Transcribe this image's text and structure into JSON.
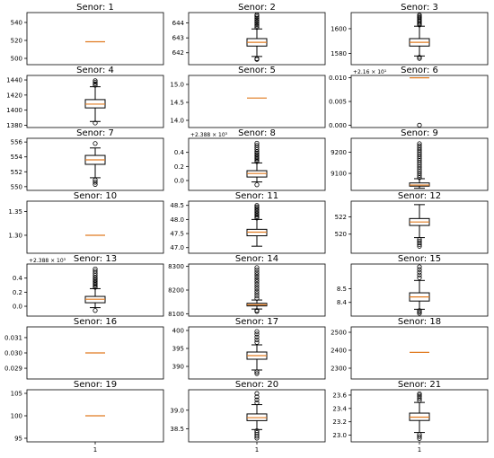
{
  "chart_data": [
    {
      "type": "box",
      "title": "Senor: 1",
      "ylim": [
        493,
        551
      ],
      "yticks": [
        500,
        520,
        540
      ],
      "ytick_labels": [
        "500",
        "520",
        "540"
      ],
      "median": 518.5,
      "q1": 518.5,
      "q3": 518.5,
      "whisker_low": 518.5,
      "whisker_high": 518.5,
      "fliers_low": [],
      "fliers_high": [],
      "xtick_labels": []
    },
    {
      "type": "box",
      "title": "Senor: 2",
      "ylim": [
        641.2,
        644.7
      ],
      "yticks": [
        642,
        643,
        644
      ],
      "ytick_labels": [
        "642",
        "643",
        "644"
      ],
      "median": 642.7,
      "q1": 642.45,
      "q3": 642.95,
      "whisker_low": 641.75,
      "whisker_high": 643.6,
      "fliers_low": [
        641.6,
        641.55
      ],
      "fliers_high": [
        643.7,
        643.8,
        643.9,
        644.0,
        644.1,
        644.2,
        644.3,
        644.4,
        644.5,
        644.55
      ],
      "xtick_labels": []
    },
    {
      "type": "box",
      "title": "Senor: 3",
      "ylim": [
        1571,
        1613
      ],
      "yticks": [
        1580,
        1600
      ],
      "ytick_labels": [
        "1580",
        "1600"
      ],
      "median": 1589,
      "q1": 1586,
      "q3": 1592,
      "whisker_low": 1578,
      "whisker_high": 1602,
      "fliers_low": [
        1577,
        1576
      ],
      "fliers_high": [
        1603,
        1604,
        1605,
        1606,
        1607,
        1608,
        1609,
        1610,
        1611
      ],
      "xtick_labels": []
    },
    {
      "type": "box",
      "title": "Senor: 4",
      "ylim": [
        1377,
        1446
      ],
      "yticks": [
        1380,
        1400,
        1420,
        1440
      ],
      "ytick_labels": [
        "1380",
        "1400",
        "1420",
        "1440"
      ],
      "median": 1408,
      "q1": 1403,
      "q3": 1414,
      "whisker_low": 1385,
      "whisker_high": 1431,
      "fliers_low": [
        1383
      ],
      "fliers_high": [
        1433,
        1435,
        1437,
        1439
      ],
      "xtick_labels": []
    },
    {
      "type": "box",
      "title": "Senor: 5",
      "ylim": [
        13.8,
        15.25
      ],
      "yticks": [
        14.0,
        14.5,
        15.0
      ],
      "ytick_labels": [
        "14.0",
        "14.5",
        "15.0"
      ],
      "median": 14.62,
      "q1": 14.62,
      "q3": 14.62,
      "whisker_low": 14.62,
      "whisker_high": 14.62,
      "fliers_low": [],
      "fliers_high": [],
      "xtick_labels": []
    },
    {
      "type": "box",
      "title": "Senor: 6",
      "offset_label": "+2.16 × 10¹",
      "ylim": [
        -0.0005,
        0.0105
      ],
      "yticks": [
        0.0,
        0.005,
        0.01
      ],
      "ytick_labels": [
        "0.000",
        "0.005",
        "0.010"
      ],
      "median": 0.01,
      "q1": 0.01,
      "q3": 0.01,
      "whisker_low": 0.01,
      "whisker_high": 0.01,
      "fliers_low": [
        0.0
      ],
      "fliers_high": [],
      "xtick_labels": []
    },
    {
      "type": "box",
      "title": "Senor: 7",
      "ylim": [
        549.5,
        556.5
      ],
      "yticks": [
        550,
        552,
        554,
        556
      ],
      "ytick_labels": [
        "550",
        "552",
        "554",
        "556"
      ],
      "median": 553.6,
      "q1": 553.0,
      "q3": 554.2,
      "whisker_low": 551.2,
      "whisker_high": 555.2,
      "fliers_low": [
        550.9,
        550.6,
        550.3
      ],
      "fliers_high": [
        555.8
      ],
      "xtick_labels": []
    },
    {
      "type": "box",
      "title": "Senor: 8",
      "offset_label": "+2.388 × 10³",
      "ylim": [
        -0.14,
        0.6
      ],
      "yticks": [
        0.0,
        0.2,
        0.4
      ],
      "ytick_labels": [
        "0.0",
        "0.2",
        "0.4"
      ],
      "median": 0.1,
      "q1": 0.05,
      "q3": 0.14,
      "whisker_low": -0.02,
      "whisker_high": 0.25,
      "fliers_low": [
        -0.06
      ],
      "fliers_high": [
        0.27,
        0.29,
        0.31,
        0.33,
        0.35,
        0.37,
        0.39,
        0.41,
        0.44,
        0.47,
        0.5,
        0.53
      ],
      "xtick_labels": []
    },
    {
      "type": "box",
      "title": "Senor: 9",
      "ylim": [
        9020,
        9265
      ],
      "yticks": [
        9100,
        9200
      ],
      "ytick_labels": [
        "9100",
        "9200"
      ],
      "median": 9045,
      "q1": 9040,
      "q3": 9055,
      "whisker_low": 9030,
      "whisker_high": 9075,
      "fliers_low": [],
      "fliers_high": [
        9080,
        9090,
        9100,
        9110,
        9120,
        9130,
        9140,
        9150,
        9160,
        9170,
        9180,
        9190,
        9200,
        9210,
        9220,
        9230,
        9240
      ],
      "xtick_labels": []
    },
    {
      "type": "box",
      "title": "Senor: 10",
      "ylim": [
        1.262,
        1.372
      ],
      "yticks": [
        1.3,
        1.35
      ],
      "ytick_labels": [
        "1.30",
        "1.35"
      ],
      "median": 1.3,
      "q1": 1.3,
      "q3": 1.3,
      "whisker_low": 1.3,
      "whisker_high": 1.3,
      "fliers_low": [],
      "fliers_high": [],
      "xtick_labels": []
    },
    {
      "type": "box",
      "title": "Senor: 11",
      "ylim": [
        46.8,
        48.65
      ],
      "yticks": [
        47.0,
        47.5,
        48.0,
        48.5
      ],
      "ytick_labels": [
        "47.0",
        "47.5",
        "48.0",
        "48.5"
      ],
      "median": 47.55,
      "q1": 47.42,
      "q3": 47.65,
      "whisker_low": 47.05,
      "whisker_high": 48.0,
      "fliers_low": [],
      "fliers_high": [
        48.05,
        48.1,
        48.15,
        48.2,
        48.25,
        48.3,
        48.35,
        48.4,
        48.45,
        48.5
      ],
      "xtick_labels": []
    },
    {
      "type": "box",
      "title": "Senor: 12",
      "ylim": [
        517.8,
        523.8
      ],
      "yticks": [
        520,
        522
      ],
      "ytick_labels": [
        "520",
        "522"
      ],
      "median": 521.4,
      "q1": 521.0,
      "q3": 521.8,
      "whisker_low": 519.6,
      "whisker_high": 523.4,
      "fliers_low": [
        519.4,
        519.2,
        519.0,
        518.8,
        518.6
      ],
      "fliers_high": [],
      "xtick_labels": []
    },
    {
      "type": "box",
      "title": "Senor: 13",
      "offset_label": "+2.388 × 10³",
      "ylim": [
        -0.14,
        0.6
      ],
      "yticks": [
        0.0,
        0.2,
        0.4
      ],
      "ytick_labels": [
        "0.0",
        "0.2",
        "0.4"
      ],
      "median": 0.1,
      "q1": 0.05,
      "q3": 0.14,
      "whisker_low": -0.02,
      "whisker_high": 0.25,
      "fliers_low": [
        -0.06
      ],
      "fliers_high": [
        0.27,
        0.29,
        0.31,
        0.33,
        0.35,
        0.37,
        0.39,
        0.41,
        0.44,
        0.47,
        0.5,
        0.53
      ],
      "xtick_labels": []
    },
    {
      "type": "box",
      "title": "Senor: 14",
      "ylim": [
        8090,
        8310
      ],
      "yticks": [
        8100,
        8200,
        8300
      ],
      "ytick_labels": [
        "8100",
        "8200",
        "8300"
      ],
      "median": 8138,
      "q1": 8133,
      "q3": 8144,
      "whisker_low": 8120,
      "whisker_high": 8158,
      "fliers_low": [
        8114,
        8110
      ],
      "fliers_high": [
        8165,
        8175,
        8185,
        8195,
        8205,
        8215,
        8225,
        8235,
        8245,
        8255,
        8265,
        8275,
        8285,
        8295
      ],
      "xtick_labels": []
    },
    {
      "type": "box",
      "title": "Senor: 15",
      "ylim": [
        8.3,
        8.68
      ],
      "yticks": [
        8.4,
        8.5
      ],
      "ytick_labels": [
        "8.4",
        "8.5"
      ],
      "median": 8.44,
      "q1": 8.41,
      "q3": 8.47,
      "whisker_low": 8.35,
      "whisker_high": 8.56,
      "fliers_low": [
        8.34,
        8.33,
        8.32
      ],
      "fliers_high": [
        8.58,
        8.6,
        8.62,
        8.64,
        8.66
      ],
      "xtick_labels": []
    },
    {
      "type": "box",
      "title": "Senor: 16",
      "ylim": [
        0.0283,
        0.0317
      ],
      "yticks": [
        0.029,
        0.03,
        0.031
      ],
      "ytick_labels": [
        "0.029",
        "0.030",
        "0.031"
      ],
      "median": 0.03,
      "q1": 0.03,
      "q3": 0.03,
      "whisker_low": 0.03,
      "whisker_high": 0.03,
      "fliers_low": [],
      "fliers_high": [],
      "xtick_labels": []
    },
    {
      "type": "box",
      "title": "Senor: 17",
      "ylim": [
        386.5,
        401
      ],
      "yticks": [
        390,
        395,
        400
      ],
      "ytick_labels": [
        "390",
        "395",
        "400"
      ],
      "median": 393,
      "q1": 392,
      "q3": 394,
      "whisker_low": 389,
      "whisker_high": 396,
      "fliers_low": [
        388.5,
        388
      ],
      "fliers_high": [
        396.7,
        397.4,
        398.2,
        399,
        399.7
      ],
      "xtick_labels": []
    },
    {
      "type": "box",
      "title": "Senor: 18",
      "ylim": [
        2240,
        2530
      ],
      "yticks": [
        2300,
        2400,
        2500
      ],
      "ytick_labels": [
        "2300",
        "2400",
        "2500"
      ],
      "median": 2388,
      "q1": 2388,
      "q3": 2388,
      "whisker_low": 2388,
      "whisker_high": 2388,
      "fliers_low": [],
      "fliers_high": [],
      "xtick_labels": []
    },
    {
      "type": "box",
      "title": "Senor: 19",
      "ylim": [
        94.2,
        105.8
      ],
      "yticks": [
        95,
        100,
        105
      ],
      "ytick_labels": [
        "95",
        "100",
        "105"
      ],
      "median": 100,
      "q1": 100,
      "q3": 100,
      "whisker_low": 100,
      "whisker_high": 100,
      "fliers_low": [],
      "fliers_high": [],
      "xtick_labels": [
        "1"
      ]
    },
    {
      "type": "box",
      "title": "Senor: 20",
      "ylim": [
        38.15,
        39.55
      ],
      "yticks": [
        38.5,
        39.0
      ],
      "ytick_labels": [
        "38.5",
        "39.0"
      ],
      "median": 38.8,
      "q1": 38.72,
      "q3": 38.9,
      "whisker_low": 38.48,
      "whisker_high": 39.15,
      "fliers_low": [
        38.45,
        38.4,
        38.35,
        38.3,
        38.25
      ],
      "fliers_high": [
        39.2,
        39.28,
        39.36,
        39.45
      ],
      "xtick_labels": [
        "1"
      ]
    },
    {
      "type": "box",
      "title": "Senor: 21",
      "ylim": [
        22.9,
        23.68
      ],
      "yticks": [
        23.0,
        23.2,
        23.4,
        23.6
      ],
      "ytick_labels": [
        "23.0",
        "23.2",
        "23.4",
        "23.6"
      ],
      "median": 23.27,
      "q1": 23.22,
      "q3": 23.33,
      "whisker_low": 23.04,
      "whisker_high": 23.49,
      "fliers_low": [
        23.01,
        22.98,
        22.95
      ],
      "fliers_high": [
        23.52,
        23.55,
        23.58,
        23.6,
        23.62
      ],
      "xtick_labels": [
        "1"
      ]
    }
  ],
  "colors": {
    "median": "#e07b21",
    "box": "#000000",
    "axes": "#000000",
    "background": "#ffffff"
  }
}
